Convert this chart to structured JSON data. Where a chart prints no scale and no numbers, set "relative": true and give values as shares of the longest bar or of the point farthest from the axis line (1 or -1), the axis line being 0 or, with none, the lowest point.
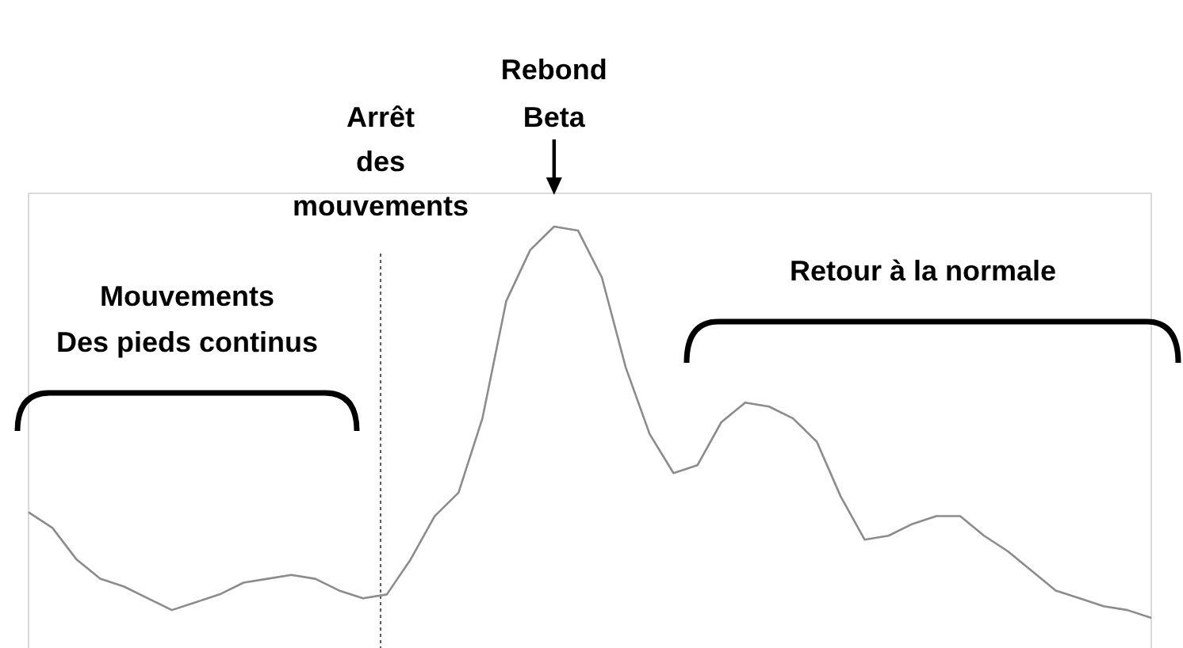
{
  "chart_data": {
    "type": "line",
    "relative": true,
    "categories": [
      null,
      null,
      null,
      null,
      null,
      null,
      null,
      null,
      null,
      null,
      null,
      null,
      null,
      null,
      null,
      null,
      null,
      null,
      null,
      null,
      null,
      null,
      null,
      null,
      null,
      null,
      null,
      null,
      null,
      null,
      null,
      null,
      null,
      null,
      null,
      null,
      null,
      null,
      null,
      null,
      null,
      null,
      null,
      null,
      null,
      null,
      null,
      null
    ],
    "series": [
      {
        "color": "#8c8c8c",
        "values": [
          0.27,
          0.23,
          0.15,
          0.1,
          0.08,
          0.05,
          0.02,
          0.04,
          0.06,
          0.09,
          0.1,
          0.11,
          0.1,
          0.07,
          0.05,
          0.06,
          0.15,
          0.26,
          0.32,
          0.51,
          0.81,
          0.94,
          1.0,
          0.99,
          0.87,
          0.64,
          0.47,
          0.37,
          0.39,
          0.5,
          0.55,
          0.54,
          0.51,
          0.45,
          0.31,
          0.2,
          0.21,
          0.24,
          0.26,
          0.26,
          0.21,
          0.17,
          0.12,
          0.07,
          0.05,
          0.03,
          0.02,
          0
        ]
      }
    ],
    "annotations": [
      "Rebond\nBeta",
      "Mouvements\nDes pieds continus",
      "Retour à la normale",
      "Arrêt\ndes\nmouvements"
    ],
    "tick_labels": false,
    "line_style": "solid",
    "marker": "none"
  }
}
